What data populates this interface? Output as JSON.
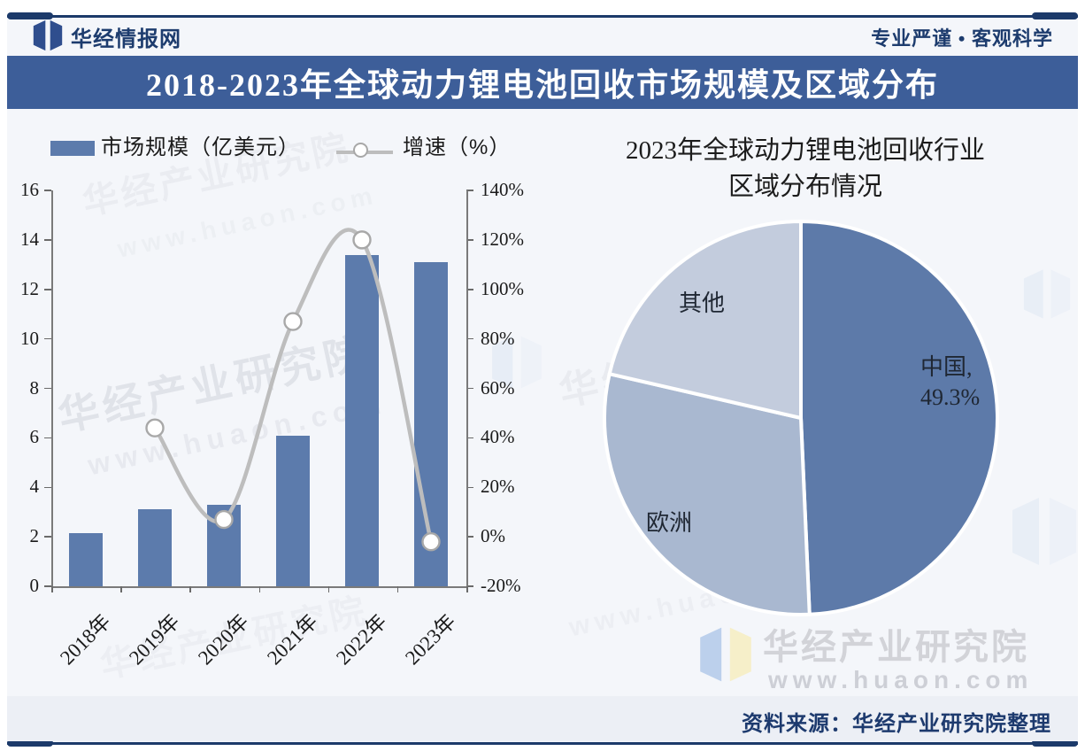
{
  "header": {
    "brand": "华经情报网",
    "slogan": "专业严谨 • 客观科学"
  },
  "banner": {
    "title": "2018-2023年全球动力锂电池回收市场规模及区域分布"
  },
  "chart_data": [
    {
      "type": "bar+line",
      "legend_position": "top",
      "categories": [
        "2018年",
        "2019年",
        "2020年",
        "2021年",
        "2022年",
        "2023年"
      ],
      "series": [
        {
          "name": "市场规模（亿美元）",
          "type": "bar",
          "axis": "left",
          "values": [
            2.15,
            3.1,
            3.3,
            6.1,
            13.4,
            13.1
          ],
          "color": "#5c7bac"
        },
        {
          "name": "增速（%）",
          "type": "line",
          "axis": "right",
          "values": [
            null,
            44,
            7,
            87,
            120,
            -2
          ],
          "color": "#bdbdbd",
          "marker": {
            "fill": "#ffffff",
            "stroke": "#a8a8a8"
          }
        }
      ],
      "left_axis": {
        "min": 0,
        "max": 16,
        "step": 2,
        "suffix": ""
      },
      "right_axis": {
        "min": -20,
        "max": 140,
        "step": 20,
        "suffix": "%"
      },
      "grid": false
    },
    {
      "type": "pie",
      "title": "2023年全球动力锂电池回收行业区域分布情况",
      "title_lines": [
        "2023年全球动力锂电池回收行业",
        "区域分布情况"
      ],
      "start": "top",
      "direction": "clockwise",
      "slices": [
        {
          "key": "china",
          "label": "中国",
          "value": 49.3,
          "labeled": true,
          "display_lines": [
            "中国,",
            "49.3%"
          ],
          "color": "#5d7aa9"
        },
        {
          "key": "europe",
          "label": "欧洲",
          "value": 29.3,
          "estimated": true,
          "color": "#a9b8d0"
        },
        {
          "key": "other",
          "label": "其他",
          "value": 21.4,
          "estimated": true,
          "color": "#c3ccdd"
        }
      ]
    }
  ],
  "source": {
    "text": "资料来源：华经产业研究院整理"
  },
  "watermark": {
    "name": "华经产业研究院",
    "url": "www.huaon.com"
  },
  "colors": {
    "navy": "#1c3a6a",
    "banner": "#3d5e99",
    "bar": "#5c7bac",
    "line": "#bdbdbd",
    "pie_china": "#5d7aa9",
    "pie_europe": "#a9b8d0",
    "pie_other": "#c3ccdd",
    "background": "#f4f6fa"
  }
}
